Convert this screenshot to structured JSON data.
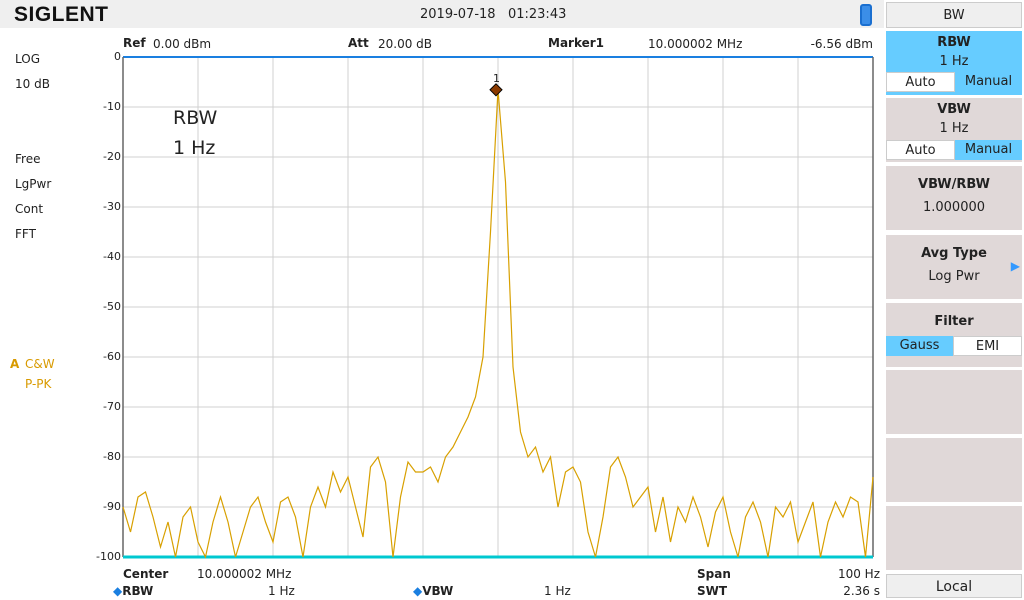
{
  "header": {
    "brand": "SIGLENT",
    "date": "2019-07-18",
    "time": "01:23:43"
  },
  "top_info": {
    "ref_label": "Ref",
    "ref_value": "0.00 dBm",
    "att_label": "Att",
    "att_value": "20.00 dB",
    "marker_label": "Marker1",
    "marker_freq": "10.000002 MHz",
    "marker_level": "-6.56 dBm"
  },
  "left": {
    "scale": "LOG",
    "div": "10 dB",
    "trig": "Free",
    "avg": "LgPwr",
    "sweep": "Cont",
    "mode": "FFT",
    "trace_id": "A",
    "trace_mode": "C&W",
    "detector": "P-PK"
  },
  "annotation": {
    "line1": "RBW",
    "line2": "1 Hz"
  },
  "bottom": {
    "center_label": "Center",
    "center_value": "10.000002 MHz",
    "span_label": "Span",
    "span_value": "100 Hz",
    "rbw_label": "RBW",
    "rbw_value": "1 Hz",
    "vbw_label": "VBW",
    "vbw_value": "1 Hz",
    "swt_label": "SWT",
    "swt_value": "2.36 s"
  },
  "menu": {
    "title": "BW",
    "rbw": {
      "label": "RBW",
      "value": "1 Hz",
      "auto": "Auto",
      "manual": "Manual"
    },
    "vbw": {
      "label": "VBW",
      "value": "1 Hz",
      "auto": "Auto",
      "manual": "Manual"
    },
    "ratio": {
      "label": "VBW/RBW",
      "value": "1.000000"
    },
    "avg_type": {
      "label": "Avg Type",
      "value": "Log Pwr"
    },
    "filter": {
      "label": "Filter",
      "gauss": "Gauss",
      "emi": "EMI"
    },
    "local": "Local"
  },
  "colors": {
    "trace": "#d8a000",
    "accent": "#66ccff",
    "grid_top": "#1a7fe0",
    "marker": "#8b3a00"
  },
  "chart_data": {
    "type": "line",
    "ylim": [
      -100,
      0
    ],
    "yticks": [
      "0",
      "-10",
      "-20",
      "-30",
      "-40",
      "-50",
      "-60",
      "-70",
      "-80",
      "-90",
      "-100"
    ],
    "x_unit": "Hz offset from start",
    "x_span_hz": 100,
    "marker": {
      "label": "1",
      "x": 50,
      "y": -6.56
    },
    "values": [
      -90,
      -95,
      -88,
      -87,
      -92,
      -98,
      -93,
      -100,
      -92,
      -90,
      -97,
      -100,
      -93,
      -88,
      -93,
      -100,
      -95,
      -90,
      -88,
      -93,
      -97,
      -89,
      -88,
      -92,
      -100,
      -90,
      -86,
      -90,
      -83,
      -87,
      -84,
      -90,
      -96,
      -82,
      -80,
      -85,
      -100,
      -88,
      -81,
      -83,
      -83,
      -82,
      -85,
      -80,
      -78,
      -75,
      -72,
      -68,
      -60,
      -35,
      -6.56,
      -25,
      -62,
      -75,
      -80,
      -78,
      -83,
      -80,
      -90,
      -83,
      -82,
      -85,
      -95,
      -100,
      -92,
      -82,
      -80,
      -84,
      -90,
      -88,
      -86,
      -95,
      -88,
      -97,
      -90,
      -93,
      -88,
      -92,
      -98,
      -91,
      -88,
      -95,
      -100,
      -92,
      -89,
      -93,
      -100,
      -90,
      -92,
      -89,
      -97,
      -93,
      -89,
      -100,
      -93,
      -89,
      -92,
      -88,
      -89,
      -100,
      -84
    ]
  }
}
